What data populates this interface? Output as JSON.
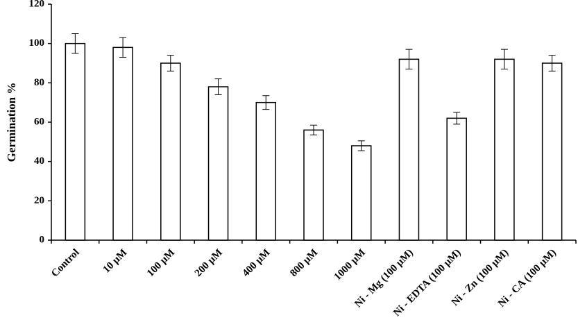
{
  "chart_data": {
    "type": "bar",
    "y_label": "Germination %",
    "categories": [
      "Control",
      "10 µM",
      "100 µM",
      "200 µM",
      "400 µM",
      "800 µM",
      "1000 µM",
      "Ni - Mg (100 µM)",
      "Ni - EDTA (100 µM)",
      "Ni - Zn (100 µM)",
      "Ni - CA (100 µM)"
    ],
    "values": [
      100,
      98,
      90,
      78,
      70,
      56,
      48,
      92,
      62,
      92,
      90
    ],
    "errors": [
      5,
      5,
      4,
      4,
      3.5,
      2.5,
      2.5,
      5,
      3,
      5,
      4
    ],
    "color": "#ffffff",
    "ylim": [
      0,
      120
    ],
    "yticks": [
      0,
      20,
      40,
      60,
      80,
      100,
      120
    ],
    "grid": false
  }
}
